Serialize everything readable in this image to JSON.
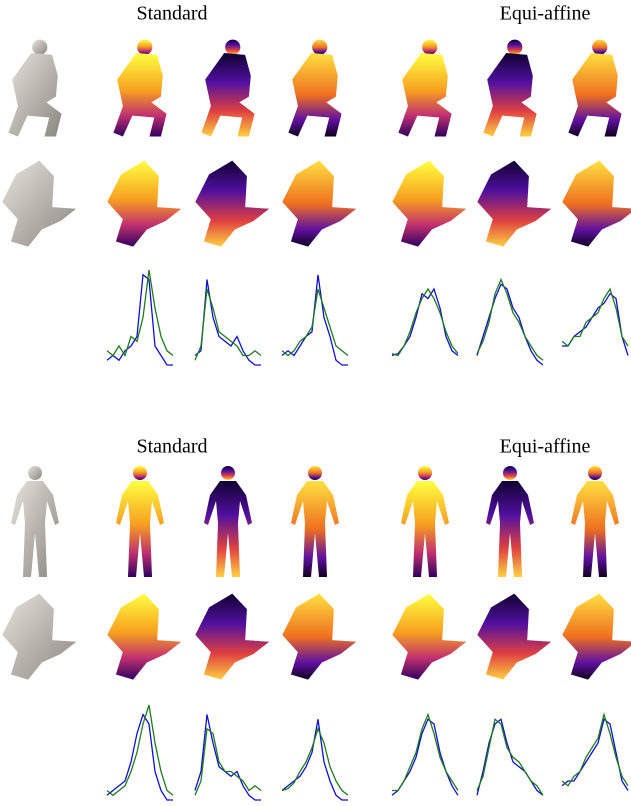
{
  "panels": [
    {
      "headings": [
        "Standard",
        "Equi-affine"
      ],
      "plots": [
        {
          "series": [
            {
              "color": "#1010d0",
              "values": [
                0.05,
                0.1,
                0.05,
                0.15,
                0.2,
                0.3,
                0.95,
                0.9,
                0.2,
                0.1,
                0,
                0
              ]
            },
            {
              "color": "#207a20",
              "values": [
                0.15,
                0.1,
                0.2,
                0.1,
                0.3,
                0.25,
                0.5,
                1,
                0.6,
                0.3,
                0.15,
                0.1
              ]
            }
          ]
        },
        {
          "series": [
            {
              "color": "#1010d0",
              "values": [
                0.1,
                0.15,
                0.9,
                0.5,
                0.3,
                0.25,
                0.2,
                0.3,
                0.15,
                0.05,
                0,
                0
              ]
            },
            {
              "color": "#207a20",
              "values": [
                0.05,
                0.2,
                0.8,
                0.6,
                0.35,
                0.3,
                0.25,
                0.2,
                0.1,
                0.1,
                0.15,
                0.1
              ]
            }
          ]
        },
        {
          "series": [
            {
              "color": "#1010d0",
              "values": [
                0.1,
                0.15,
                0.1,
                0.2,
                0.3,
                0.35,
                0.95,
                0.5,
                0.3,
                0.05,
                0,
                0
              ]
            },
            {
              "color": "#207a20",
              "values": [
                0.15,
                0.1,
                0.15,
                0.25,
                0.3,
                0.4,
                0.8,
                0.6,
                0.4,
                0.2,
                0.15,
                0.1
              ]
            }
          ]
        },
        {
          "series": [
            {
              "color": "#1010d0",
              "values": [
                0.1,
                0.12,
                0.2,
                0.3,
                0.5,
                0.75,
                0.7,
                0.8,
                0.6,
                0.3,
                0.15,
                0.1
              ]
            },
            {
              "color": "#207a20",
              "values": [
                0.12,
                0.1,
                0.2,
                0.35,
                0.55,
                0.7,
                0.8,
                0.7,
                0.55,
                0.35,
                0.2,
                0.12
              ]
            }
          ]
        },
        {
          "series": [
            {
              "color": "#1010d0",
              "values": [
                0.1,
                0.3,
                0.5,
                0.7,
                0.85,
                0.8,
                0.6,
                0.5,
                0.3,
                0.15,
                0.05,
                0
              ]
            },
            {
              "color": "#207a20",
              "values": [
                0.12,
                0.25,
                0.45,
                0.75,
                0.9,
                0.75,
                0.55,
                0.45,
                0.3,
                0.2,
                0.1,
                0.05
              ]
            }
          ]
        },
        {
          "series": [
            {
              "color": "#1010d0",
              "values": [
                0.2,
                0.2,
                0.3,
                0.35,
                0.4,
                0.5,
                0.6,
                0.65,
                0.75,
                0.7,
                0.3,
                0.1
              ]
            },
            {
              "color": "#207a20",
              "values": [
                0.25,
                0.2,
                0.3,
                0.3,
                0.45,
                0.5,
                0.55,
                0.7,
                0.8,
                0.6,
                0.3,
                0.2
              ]
            }
          ]
        }
      ]
    },
    {
      "headings": [
        "Standard",
        "Equi-affine"
      ],
      "plots": [
        {
          "series": [
            {
              "color": "#1010d0",
              "values": [
                0.05,
                0.1,
                0.15,
                0.2,
                0.4,
                0.7,
                0.9,
                0.8,
                0.3,
                0.1,
                0,
                0
              ]
            },
            {
              "color": "#207a20",
              "values": [
                0.1,
                0.05,
                0.1,
                0.15,
                0.3,
                0.5,
                0.8,
                1,
                0.6,
                0.3,
                0.1,
                0.05
              ]
            }
          ]
        },
        {
          "series": [
            {
              "color": "#1010d0",
              "values": [
                0.1,
                0.3,
                0.9,
                0.6,
                0.35,
                0.3,
                0.25,
                0.3,
                0.15,
                0.05,
                0,
                0
              ]
            },
            {
              "color": "#207a20",
              "values": [
                0.05,
                0.2,
                0.75,
                0.7,
                0.4,
                0.3,
                0.3,
                0.25,
                0.2,
                0.1,
                0.15,
                0.1
              ]
            }
          ]
        },
        {
          "series": [
            {
              "color": "#1010d0",
              "values": [
                0.1,
                0.15,
                0.2,
                0.25,
                0.35,
                0.5,
                0.85,
                0.4,
                0.2,
                0.05,
                0,
                0
              ]
            },
            {
              "color": "#207a20",
              "values": [
                0.1,
                0.12,
                0.18,
                0.3,
                0.4,
                0.55,
                0.75,
                0.6,
                0.35,
                0.2,
                0.1,
                0.05
              ]
            }
          ]
        },
        {
          "series": [
            {
              "color": "#1010d0",
              "values": [
                0.05,
                0.1,
                0.2,
                0.3,
                0.45,
                0.7,
                0.85,
                0.8,
                0.5,
                0.3,
                0.15,
                0.05
              ]
            },
            {
              "color": "#207a20",
              "values": [
                0.1,
                0.1,
                0.2,
                0.35,
                0.5,
                0.75,
                0.9,
                0.7,
                0.45,
                0.3,
                0.2,
                0.1
              ]
            }
          ]
        },
        {
          "series": [
            {
              "color": "#1010d0",
              "values": [
                0.05,
                0.3,
                0.6,
                0.8,
                0.85,
                0.6,
                0.4,
                0.35,
                0.3,
                0.2,
                0.1,
                0.05
              ]
            },
            {
              "color": "#207a20",
              "values": [
                0.1,
                0.25,
                0.55,
                0.85,
                0.8,
                0.55,
                0.45,
                0.4,
                0.3,
                0.2,
                0.15,
                0.05
              ]
            }
          ]
        },
        {
          "series": [
            {
              "color": "#1010d0",
              "values": [
                0.15,
                0.2,
                0.2,
                0.3,
                0.4,
                0.5,
                0.6,
                0.85,
                0.8,
                0.5,
                0.2,
                0.1
              ]
            },
            {
              "color": "#207a20",
              "values": [
                0.2,
                0.15,
                0.25,
                0.3,
                0.45,
                0.55,
                0.65,
                0.9,
                0.7,
                0.45,
                0.25,
                0.15
              ]
            }
          ]
        }
      ]
    }
  ]
}
